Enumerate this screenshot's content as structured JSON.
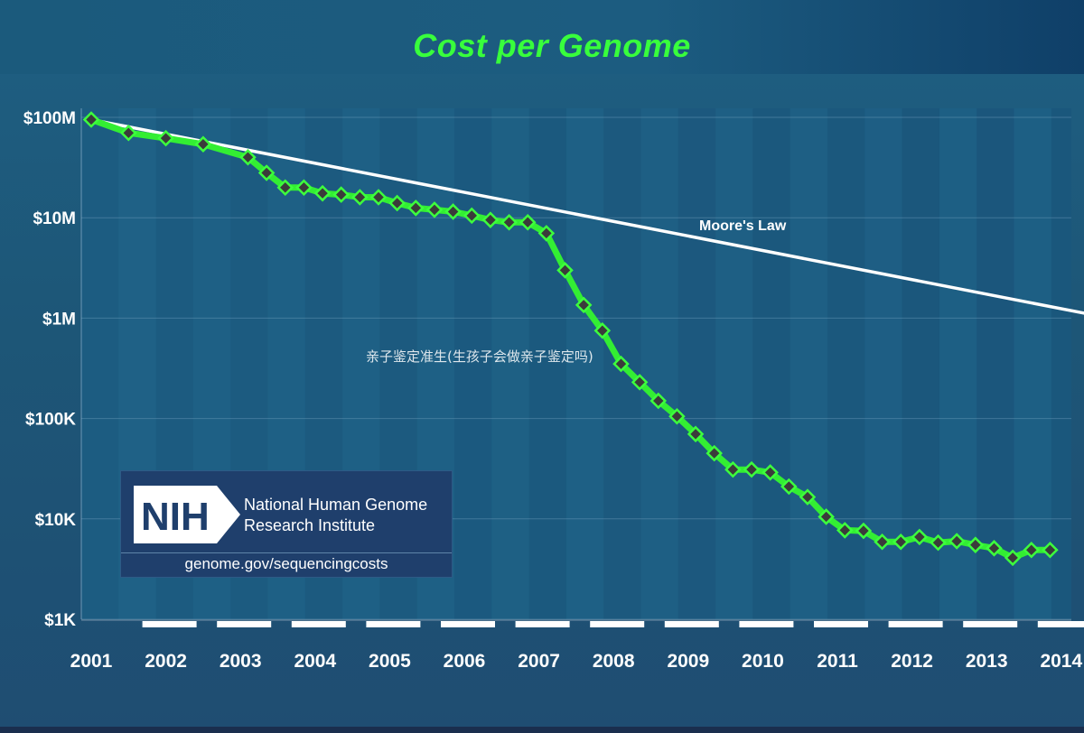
{
  "chart_data": {
    "type": "line",
    "title": "Cost per Genome",
    "xlabel": "",
    "ylabel": "",
    "yscale": "log",
    "ylim": [
      1000,
      100000000
    ],
    "xlim": [
      2001,
      2014.5
    ],
    "yticks": [
      {
        "value": 100000000,
        "label": "$100M"
      },
      {
        "value": 10000000,
        "label": "$10M"
      },
      {
        "value": 1000000,
        "label": "$1M"
      },
      {
        "value": 100000,
        "label": "$100K"
      },
      {
        "value": 10000,
        "label": "$10K"
      },
      {
        "value": 1000,
        "label": "$1K"
      }
    ],
    "xticks": [
      2001,
      2002,
      2003,
      2004,
      2005,
      2006,
      2007,
      2008,
      2009,
      2010,
      2011,
      2012,
      2013,
      2014
    ],
    "series": [
      {
        "name": "",
        "color": "#33ee33",
        "points": [
          [
            2001.0,
            95000000
          ],
          [
            2001.5,
            70000000
          ],
          [
            2002.0,
            62000000
          ],
          [
            2002.5,
            54000000
          ],
          [
            2003.1,
            40000000
          ],
          [
            2003.35,
            28000000
          ],
          [
            2003.6,
            20000000
          ],
          [
            2003.85,
            20000000
          ],
          [
            2004.1,
            17500000
          ],
          [
            2004.35,
            17000000
          ],
          [
            2004.6,
            16000000
          ],
          [
            2004.85,
            16000000
          ],
          [
            2005.1,
            14000000
          ],
          [
            2005.35,
            12500000
          ],
          [
            2005.6,
            12000000
          ],
          [
            2005.85,
            11500000
          ],
          [
            2006.1,
            10500000
          ],
          [
            2006.35,
            9500000
          ],
          [
            2006.6,
            9000000
          ],
          [
            2006.85,
            9000000
          ],
          [
            2007.1,
            7000000
          ],
          [
            2007.35,
            3000000
          ],
          [
            2007.6,
            1350000
          ],
          [
            2007.85,
            750000
          ],
          [
            2008.1,
            350000
          ],
          [
            2008.35,
            230000
          ],
          [
            2008.6,
            150000
          ],
          [
            2008.85,
            105000
          ],
          [
            2009.1,
            70000
          ],
          [
            2009.35,
            45000
          ],
          [
            2009.6,
            31000
          ],
          [
            2009.85,
            31000
          ],
          [
            2010.1,
            29000
          ],
          [
            2010.35,
            21000
          ],
          [
            2010.6,
            16500
          ],
          [
            2010.85,
            10500
          ],
          [
            2011.1,
            7700
          ],
          [
            2011.35,
            7600
          ],
          [
            2011.6,
            5900
          ],
          [
            2011.85,
            5900
          ],
          [
            2012.1,
            6600
          ],
          [
            2012.35,
            5800
          ],
          [
            2012.6,
            6000
          ],
          [
            2012.85,
            5500
          ],
          [
            2013.1,
            5100
          ],
          [
            2013.35,
            4100
          ],
          [
            2013.6,
            4900
          ],
          [
            2013.85,
            4900
          ]
        ]
      }
    ],
    "reference_line": {
      "name": "Moore's Law",
      "color": "#ffffff",
      "start": [
        2001.0,
        95000000
      ],
      "end": [
        2014.5,
        1050000
      ]
    },
    "grid": true,
    "legend": "none"
  },
  "annotations": {
    "moores_law_label": "Moore's Law",
    "overlay_text": "亲子鉴定准生(生孩子会做亲子鉴定吗)"
  },
  "logo": {
    "badge_text": "NIH",
    "name_line1": "National Human Genome",
    "name_line2": "Research Institute",
    "url": "genome.gov/sequencingcosts"
  },
  "colors": {
    "title": "#38ff3c",
    "series": "#33ee33",
    "marker_fill": "#3b3b3b",
    "moore": "#ffffff"
  }
}
